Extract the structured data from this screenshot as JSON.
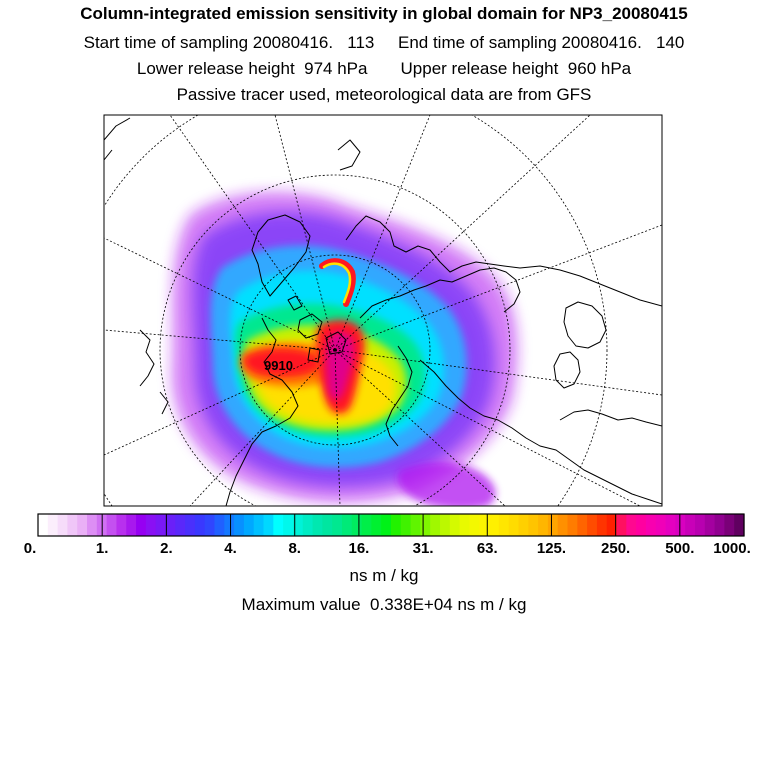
{
  "header": {
    "title": "Column-integrated emission sensitivity in global domain for NP3_20080415",
    "sampling_line": "Start time of sampling 20080416.   113     End time of sampling 20080416.   140",
    "release_line": "Lower release height  974 hPa       Upper release height  960 hPa",
    "tracer_line": "Passive tracer used, meteorological data are from GFS"
  },
  "colorbar": {
    "labels": [
      "0.",
      "1.",
      "2.",
      "4.",
      "8.",
      "16.",
      "31.",
      "63.",
      "125.",
      "250.",
      "500.",
      "1000."
    ],
    "colors": [
      "#ffffff",
      "#fbeefc",
      "#f6dcfa",
      "#f0c6f8",
      "#eab0f6",
      "#dd8ef4",
      "#d070f2",
      "#c450f0",
      "#b830ee",
      "#a818ee",
      "#9600f2",
      "#8a10f4",
      "#7a18f6",
      "#6a20f8",
      "#5a28fa",
      "#4a30fc",
      "#3a38fe",
      "#3046fe",
      "#2060ff",
      "#1478ff",
      "#0890ff",
      "#00a8ff",
      "#00c0ff",
      "#00d8ff",
      "#00ffff",
      "#00f8ec",
      "#00f2d8",
      "#00ecc4",
      "#00e8b0",
      "#00e6a0",
      "#00e890",
      "#00ea78",
      "#00ec60",
      "#00ee48",
      "#00f030",
      "#00f218",
      "#22f200",
      "#40f200",
      "#60f400",
      "#80f600",
      "#a0f800",
      "#bcf800",
      "#d4fa00",
      "#e8fa00",
      "#f4f800",
      "#fcf400",
      "#fff000",
      "#ffe600",
      "#ffdc00",
      "#ffd000",
      "#ffc400",
      "#ffb600",
      "#ffa400",
      "#ff9000",
      "#ff7c00",
      "#ff6400",
      "#ff4c00",
      "#ff3400",
      "#ff2000",
      "#ff1060",
      "#ff0890",
      "#ff00a0",
      "#f800b0",
      "#f000b8",
      "#e400c0",
      "#d800c0",
      "#c800b8",
      "#b800b0",
      "#a400a0",
      "#900090",
      "#7a0078",
      "#600060"
    ]
  },
  "map": {
    "max_marker_text": "9910",
    "colors": {
      "fringe_magenta": "#b018f0",
      "violet": "#7a38f8",
      "light_blue": "#30a8ff",
      "cyan": "#00e0ff",
      "green": "#00e890",
      "yellow_green": "#c8f000",
      "yellow": "#ffe000",
      "orange": "#ff8000",
      "red": "#ff1820",
      "core_magenta": "#e0008c",
      "coast": "#000000",
      "grid": "#000000"
    }
  },
  "units": "ns m / kg",
  "max_value_text": "Maximum value  0.338E+04 ns m / kg"
}
